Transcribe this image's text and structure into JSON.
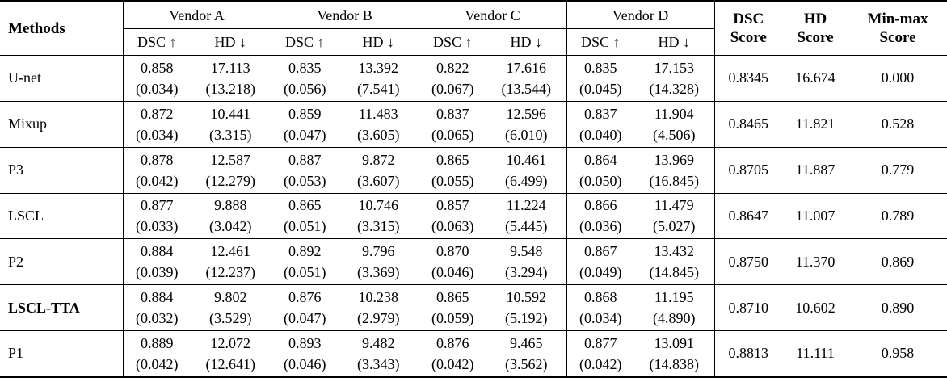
{
  "table": {
    "methods_header": "Methods",
    "vendor_groups": [
      {
        "label": "Vendor A"
      },
      {
        "label": "Vendor B"
      },
      {
        "label": "Vendor C"
      },
      {
        "label": "Vendor D"
      }
    ],
    "sub_headers": {
      "dsc": "DSC ↑",
      "hd": "HD ↓"
    },
    "score_headers": [
      {
        "line1": "DSC",
        "line2": "Score"
      },
      {
        "line1": "HD",
        "line2": "Score"
      },
      {
        "line1": "Min-max",
        "line2": "Score"
      }
    ],
    "rows": [
      {
        "method": "U-net",
        "bold": false,
        "vendors": [
          {
            "dsc": "0.858",
            "dsc_std": "(0.034)",
            "hd": "17.113",
            "hd_std": "(13.218)"
          },
          {
            "dsc": "0.835",
            "dsc_std": "(0.056)",
            "hd": "13.392",
            "hd_std": "(7.541)"
          },
          {
            "dsc": "0.822",
            "dsc_std": "(0.067)",
            "hd": "17.616",
            "hd_std": "(13.544)"
          },
          {
            "dsc": "0.835",
            "dsc_std": "(0.045)",
            "hd": "17.153",
            "hd_std": "(14.328)"
          }
        ],
        "dsc_score": "0.8345",
        "hd_score": "16.674",
        "minmax_score": "0.000"
      },
      {
        "method": "Mixup",
        "bold": false,
        "vendors": [
          {
            "dsc": "0.872",
            "dsc_std": "(0.034)",
            "hd": "10.441",
            "hd_std": "(3.315)"
          },
          {
            "dsc": "0.859",
            "dsc_std": "(0.047)",
            "hd": "11.483",
            "hd_std": "(3.605)"
          },
          {
            "dsc": "0.837",
            "dsc_std": "(0.065)",
            "hd": "12.596",
            "hd_std": "(6.010)"
          },
          {
            "dsc": "0.837",
            "dsc_std": "(0.040)",
            "hd": "11.904",
            "hd_std": "(4.506)"
          }
        ],
        "dsc_score": "0.8465",
        "hd_score": "11.821",
        "minmax_score": "0.528"
      },
      {
        "method": "P3",
        "bold": false,
        "vendors": [
          {
            "dsc": "0.878",
            "dsc_std": "(0.042)",
            "hd": "12.587",
            "hd_std": "(12.279)"
          },
          {
            "dsc": "0.887",
            "dsc_std": "(0.053)",
            "hd": "9.872",
            "hd_std": "(3.607)"
          },
          {
            "dsc": "0.865",
            "dsc_std": "(0.055)",
            "hd": "10.461",
            "hd_std": "(6.499)"
          },
          {
            "dsc": "0.864",
            "dsc_std": "(0.050)",
            "hd": "13.969",
            "hd_std": "(16.845)"
          }
        ],
        "dsc_score": "0.8705",
        "hd_score": "11.887",
        "minmax_score": "0.779"
      },
      {
        "method": "LSCL",
        "bold": false,
        "vendors": [
          {
            "dsc": "0.877",
            "dsc_std": "(0.033)",
            "hd": "9.888",
            "hd_std": "(3.042)"
          },
          {
            "dsc": "0.865",
            "dsc_std": "(0.051)",
            "hd": "10.746",
            "hd_std": "(3.315)"
          },
          {
            "dsc": "0.857",
            "dsc_std": "(0.063)",
            "hd": "11.224",
            "hd_std": "(5.445)"
          },
          {
            "dsc": "0.866",
            "dsc_std": "(0.036)",
            "hd": "11.479",
            "hd_std": "(5.027)"
          }
        ],
        "dsc_score": "0.8647",
        "hd_score": "11.007",
        "minmax_score": "0.789"
      },
      {
        "method": "P2",
        "bold": false,
        "vendors": [
          {
            "dsc": "0.884",
            "dsc_std": "(0.039)",
            "hd": "12.461",
            "hd_std": "(12.237)"
          },
          {
            "dsc": "0.892",
            "dsc_std": "(0.051)",
            "hd": "9.796",
            "hd_std": "(3.369)"
          },
          {
            "dsc": "0.870",
            "dsc_std": "(0.046)",
            "hd": "9.548",
            "hd_std": "(3.294)"
          },
          {
            "dsc": "0.867",
            "dsc_std": "(0.049)",
            "hd": "13.432",
            "hd_std": "(14.845)"
          }
        ],
        "dsc_score": "0.8750",
        "hd_score": "11.370",
        "minmax_score": "0.869"
      },
      {
        "method": "LSCL-TTA",
        "bold": true,
        "vendors": [
          {
            "dsc": "0.884",
            "dsc_std": "(0.032)",
            "hd": "9.802",
            "hd_std": "(3.529)"
          },
          {
            "dsc": "0.876",
            "dsc_std": "(0.047)",
            "hd": "10.238",
            "hd_std": "(2.979)"
          },
          {
            "dsc": "0.865",
            "dsc_std": "(0.059)",
            "hd": "10.592",
            "hd_std": "(5.192)"
          },
          {
            "dsc": "0.868",
            "dsc_std": "(0.034)",
            "hd": "11.195",
            "hd_std": "(4.890)"
          }
        ],
        "dsc_score": "0.8710",
        "hd_score": "10.602",
        "minmax_score": "0.890"
      },
      {
        "method": "P1",
        "bold": false,
        "vendors": [
          {
            "dsc": "0.889",
            "dsc_std": "(0.042)",
            "hd": "12.072",
            "hd_std": "(12.641)"
          },
          {
            "dsc": "0.893",
            "dsc_std": "(0.046)",
            "hd": "9.482",
            "hd_std": "(3.343)"
          },
          {
            "dsc": "0.876",
            "dsc_std": "(0.042)",
            "hd": "9.465",
            "hd_std": "(3.562)"
          },
          {
            "dsc": "0.877",
            "dsc_std": "(0.042)",
            "hd": "13.091",
            "hd_std": "(14.838)"
          }
        ],
        "dsc_score": "0.8813",
        "hd_score": "11.111",
        "minmax_score": "0.958"
      }
    ]
  }
}
